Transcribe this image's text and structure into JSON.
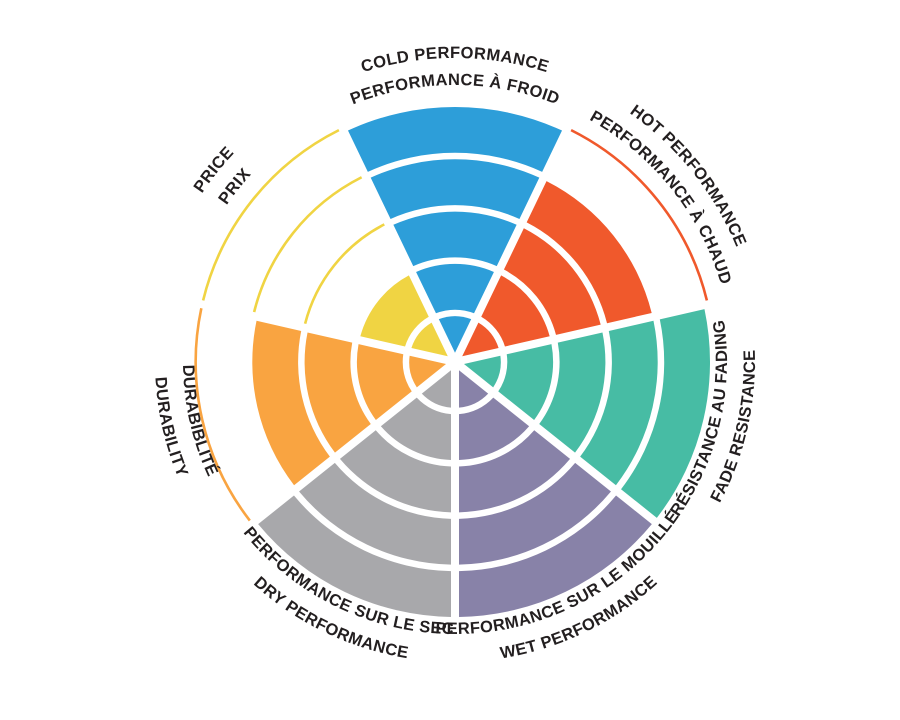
{
  "page": {
    "background": "#FFFFFF",
    "text_color": "#231F20"
  },
  "chart_data": {
    "type": "radial_wedge_rating",
    "description_title": "",
    "rings": 5,
    "value_max": 5,
    "start_angle": "top",
    "direction": "clockwise",
    "grid": "concentric ring bands separated by white arcs; unfilled rings shown as thin colored outline arcs",
    "legend_position": "labels curved around wheel, bilingual",
    "categories": [
      {
        "id": "cold-performance",
        "lines": [
          "COLD PERFORMANCE",
          "PERFORMANCE À FROID"
        ],
        "value": 5,
        "color": "#2D9ED9",
        "label_side": "top"
      },
      {
        "id": "hot-performance",
        "lines": [
          "HOT PERFORMANCE",
          "PERFORMANCE À CHAUD"
        ],
        "value": 4,
        "color": "#F0592C",
        "label_side": "top"
      },
      {
        "id": "fade-resistance",
        "lines": [
          "RÉSISTANCE AU FADING",
          "FADE RESISTANCE"
        ],
        "value": 5,
        "color": "#47BCA4",
        "label_side": "bottom"
      },
      {
        "id": "wet-performance",
        "lines": [
          "PERFORMANCE SUR LE MOUILLÉ",
          "WET PERFORMANCE"
        ],
        "value": 5,
        "color": "#8882A8",
        "label_side": "bottom"
      },
      {
        "id": "dry-performance",
        "lines": [
          "PERFORMANCE SUR LE SEC",
          "DRY PERFORMANCE"
        ],
        "value": 5,
        "color": "#A8A8AB",
        "label_side": "bottom"
      },
      {
        "id": "durability",
        "lines": [
          "DURABIBLITÉ",
          "DURABILITY"
        ],
        "value": 4,
        "color": "#F9A441",
        "label_side": "bottom"
      },
      {
        "id": "price",
        "lines": [
          "PRICE",
          "PRIX"
        ],
        "value": 2,
        "color": "#F0D443",
        "label_side": "top"
      }
    ]
  }
}
